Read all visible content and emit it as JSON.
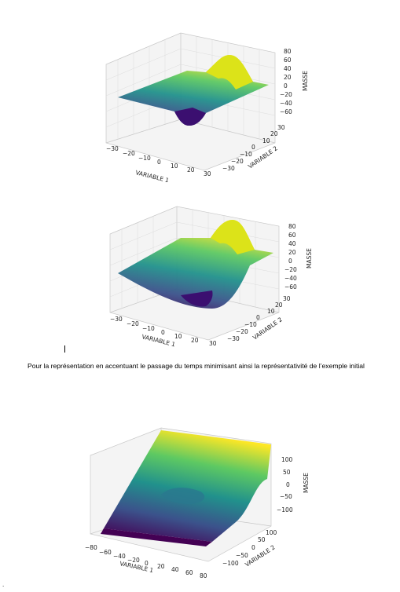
{
  "document": {
    "caption": "Pour la représentation en accentuant le passage du temps minimisant ainsi la représentativité de l’exemple initial",
    "cursor_char": "|",
    "footer_mark": "."
  },
  "chart_data": [
    {
      "type": "surface3d",
      "colormap": [
        "#440154",
        "#3b528b",
        "#21918c",
        "#5ec962",
        "#fde725"
      ],
      "xlabel": "VARIABLE 1",
      "ylabel": "VARIABLE 2",
      "zlabel": "MASSE",
      "x_ticks": [
        "−30",
        "−20",
        "−10",
        "0",
        "10",
        "20",
        "30"
      ],
      "y_ticks": [
        "−30",
        "−20",
        "−10",
        "0",
        "10",
        "20",
        "30"
      ],
      "z_ticks": [
        "−60",
        "−40",
        "−20",
        "0",
        "20",
        "40",
        "60",
        "80"
      ],
      "xlim": [
        -30,
        30
      ],
      "ylim": [
        -30,
        30
      ],
      "zlim": [
        -70,
        85
      ],
      "grid": true
    },
    {
      "type": "surface3d",
      "colormap": [
        "#440154",
        "#3b528b",
        "#21918c",
        "#5ec962",
        "#fde725"
      ],
      "xlabel": "VARIABLE 1",
      "ylabel": "VARIABLE 2",
      "zlabel": "MASSE",
      "x_ticks": [
        "−30",
        "−20",
        "−10",
        "0",
        "10",
        "20",
        "30"
      ],
      "y_ticks": [
        "−30",
        "−20",
        "−10",
        "0",
        "10",
        "20",
        "30"
      ],
      "z_ticks": [
        "−60",
        "−40",
        "−20",
        "0",
        "20",
        "40",
        "60",
        "80"
      ],
      "xlim": [
        -30,
        30
      ],
      "ylim": [
        -30,
        30
      ],
      "zlim": [
        -70,
        85
      ],
      "grid": true
    },
    {
      "type": "surface3d",
      "colormap": [
        "#440154",
        "#3b528b",
        "#21918c",
        "#5ec962",
        "#fde725"
      ],
      "xlabel": "VARIABLE 1",
      "ylabel": "VARIABLE 2",
      "zlabel": "MASSE",
      "x_ticks": [
        "−80",
        "−60",
        "−40",
        "−20",
        "0",
        "20",
        "40",
        "60",
        "80"
      ],
      "y_ticks": [
        "−100",
        "−50",
        "0",
        "50",
        "100"
      ],
      "z_ticks": [
        "−100",
        "−50",
        "0",
        "50",
        "100"
      ],
      "xlim": [
        -80,
        80
      ],
      "ylim": [
        -100,
        100
      ],
      "zlim": [
        -130,
        130
      ],
      "grid": true
    }
  ]
}
